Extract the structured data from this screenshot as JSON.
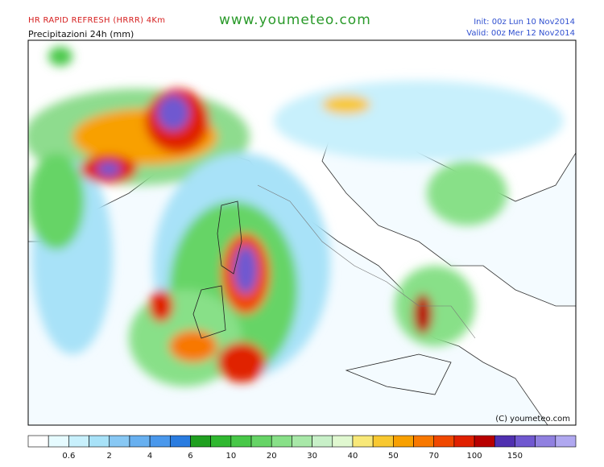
{
  "header": {
    "model": "HR RAPID REFRESH (HRRR) 4Km",
    "field": "Precipitazioni 24h (mm)",
    "site": "www.youmeteo.com",
    "init": "Init: 00z Lun  10 Nov2014",
    "valid": "Valid: 00z Mer  12 Nov2014"
  },
  "map": {
    "copyright": "(C) youmeteo.com"
  },
  "legend": {
    "colors": [
      "#ffffff",
      "#e6fbff",
      "#c8f0fc",
      "#a8e2f8",
      "#88c8f4",
      "#68b0f0",
      "#4a98ec",
      "#2a7ce0",
      "#20a020",
      "#30b830",
      "#48c848",
      "#66d466",
      "#88e088",
      "#a8e8a8",
      "#c8f0c8",
      "#e0f8d0",
      "#f8e878",
      "#f8c830",
      "#f8a000",
      "#f87800",
      "#f04800",
      "#e02000",
      "#b80000",
      "#5030b0",
      "#7058d0",
      "#9080e0",
      "#b0a8f0"
    ],
    "labels": [
      "0.6",
      "2",
      "4",
      "6",
      "10",
      "20",
      "30",
      "40",
      "50",
      "70",
      "100",
      "150"
    ]
  }
}
